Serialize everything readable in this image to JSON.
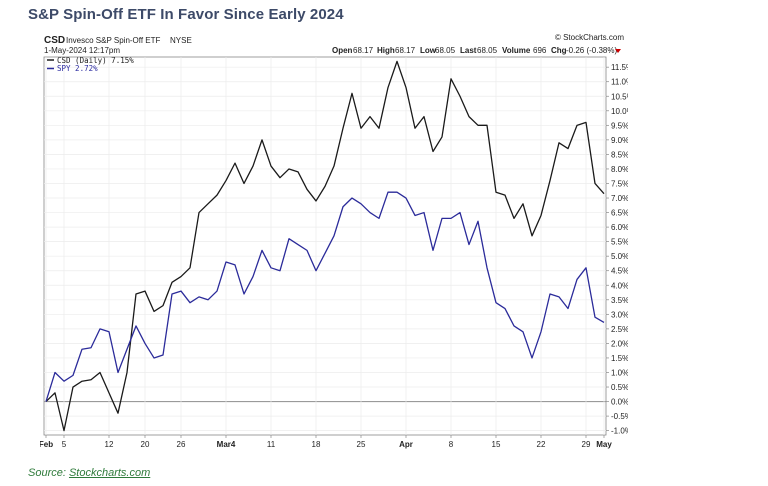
{
  "headline": "S&P Spin-Off ETF In Favor Since Early 2024",
  "source": {
    "prefix": "Source: ",
    "link": "Stockcharts.com"
  },
  "chart_data": {
    "type": "line",
    "symbol": "CSD",
    "name": "Invesco S&P Spin-Off ETF",
    "exchange": "NYSE",
    "timestamp": "1-May-2024 12:17pm",
    "watermark": "© StockCharts.com",
    "quote": {
      "open_label": "Open",
      "open": "68.17",
      "high_label": "High",
      "high": "68.17",
      "low_label": "Low",
      "low": "68.05",
      "last_label": "Last",
      "last": "68.05",
      "volume_label": "Volume",
      "volume": "696",
      "chg_label": "Chg",
      "chg": "-0.26 (-0.38%)"
    },
    "legend": {
      "csd": "CSD (Daily) 7.15%",
      "spy": "SPY 2.72%"
    },
    "y_ticks": [
      "11.5%",
      "11.0%",
      "10.5%",
      "10.0%",
      "9.5%",
      "9.0%",
      "8.5%",
      "8.0%",
      "7.5%",
      "7.0%",
      "6.5%",
      "6.0%",
      "5.5%",
      "5.0%",
      "4.5%",
      "4.0%",
      "3.5%",
      "3.0%",
      "2.5%",
      "2.0%",
      "1.5%",
      "1.0%",
      "0.5%",
      "0.0%",
      "-0.5%",
      "-1.0%"
    ],
    "ylim": [
      -1.0,
      11.5
    ],
    "x_ticks": [
      {
        "label": "Feb",
        "i": 0,
        "bold": true
      },
      {
        "label": "5",
        "i": 2,
        "bold": false
      },
      {
        "label": "12",
        "i": 7,
        "bold": false
      },
      {
        "label": "20",
        "i": 11,
        "bold": false
      },
      {
        "label": "26",
        "i": 15,
        "bold": false
      },
      {
        "label": "Mar4",
        "i": 20,
        "bold": true
      },
      {
        "label": "11",
        "i": 25,
        "bold": false
      },
      {
        "label": "18",
        "i": 30,
        "bold": false
      },
      {
        "label": "25",
        "i": 35,
        "bold": false
      },
      {
        "label": "Apr",
        "i": 40,
        "bold": true
      },
      {
        "label": "8",
        "i": 45,
        "bold": false
      },
      {
        "label": "15",
        "i": 50,
        "bold": false
      },
      {
        "label": "22",
        "i": 55,
        "bold": false
      },
      {
        "label": "29",
        "i": 60,
        "bold": false
      },
      {
        "label": "May",
        "i": 62,
        "bold": true
      }
    ],
    "n_points": 63,
    "series": [
      {
        "name": "CSD (Daily) 7.15%",
        "color": "#1a1a1a",
        "values": [
          0.0,
          0.3,
          -1.0,
          0.5,
          0.7,
          0.75,
          1.0,
          0.3,
          -0.4,
          1.0,
          3.7,
          3.8,
          3.1,
          3.3,
          4.1,
          4.3,
          4.6,
          6.5,
          6.8,
          7.1,
          7.6,
          8.2,
          7.5,
          8.1,
          9.0,
          8.1,
          7.7,
          8.0,
          7.9,
          7.3,
          6.9,
          7.4,
          8.1,
          9.4,
          10.6,
          9.4,
          9.8,
          9.4,
          10.8,
          11.7,
          10.8,
          9.4,
          9.8,
          8.6,
          9.1,
          11.1,
          10.5,
          9.8,
          9.5,
          9.5,
          7.2,
          7.1,
          6.3,
          6.8,
          5.7,
          6.4,
          7.6,
          8.9,
          8.7,
          9.5,
          9.6,
          7.5,
          7.15
        ]
      },
      {
        "name": "SPY 2.72%",
        "color": "#2b2b9a",
        "values": [
          0.0,
          1.0,
          0.7,
          0.9,
          1.8,
          1.85,
          2.5,
          2.4,
          1.0,
          1.8,
          2.6,
          2.0,
          1.5,
          1.6,
          3.7,
          3.8,
          3.4,
          3.6,
          3.5,
          3.8,
          4.8,
          4.7,
          3.7,
          4.3,
          5.2,
          4.6,
          4.5,
          5.6,
          5.4,
          5.2,
          4.5,
          5.1,
          5.7,
          6.7,
          7.0,
          6.8,
          6.5,
          6.3,
          7.2,
          7.2,
          7.0,
          6.4,
          6.5,
          5.2,
          6.3,
          6.3,
          6.5,
          5.4,
          6.2,
          4.6,
          3.4,
          3.2,
          2.6,
          2.4,
          1.5,
          2.4,
          3.7,
          3.6,
          3.2,
          4.2,
          4.6,
          2.9,
          2.72
        ]
      }
    ]
  }
}
